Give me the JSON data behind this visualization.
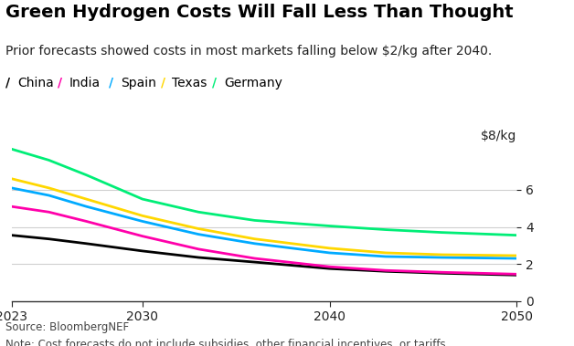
{
  "title": "Green Hydrogen Costs Will Fall Less Than Thought",
  "subtitle": "Prior forecasts showed costs in most markets falling below $2/kg after 2040.",
  "ylabel": "$8/kg",
  "source": "Source: BloombergNEF",
  "note": "Note: Cost forecasts do not include subsidies, other financial incentives, or tariffs.",
  "x": [
    2023,
    2025,
    2027,
    2030,
    2033,
    2036,
    2040,
    2043,
    2046,
    2050
  ],
  "series": {
    "China": {
      "color": "#000000",
      "values": [
        3.55,
        3.35,
        3.1,
        2.7,
        2.35,
        2.1,
        1.75,
        1.6,
        1.5,
        1.4
      ]
    },
    "India": {
      "color": "#FF00AA",
      "values": [
        5.1,
        4.8,
        4.3,
        3.5,
        2.8,
        2.3,
        1.85,
        1.65,
        1.55,
        1.45
      ]
    },
    "Spain": {
      "color": "#00AAFF",
      "values": [
        6.1,
        5.7,
        5.1,
        4.3,
        3.6,
        3.1,
        2.6,
        2.4,
        2.35,
        2.3
      ]
    },
    "Texas": {
      "color": "#FFD700",
      "values": [
        6.6,
        6.1,
        5.5,
        4.6,
        3.9,
        3.35,
        2.85,
        2.6,
        2.5,
        2.45
      ]
    },
    "Germany": {
      "color": "#00EE77",
      "values": [
        8.2,
        7.6,
        6.8,
        5.5,
        4.8,
        4.35,
        4.05,
        3.85,
        3.7,
        3.55
      ]
    }
  },
  "xlim": [
    2023,
    2050
  ],
  "ylim": [
    0,
    8.4
  ],
  "yticks": [
    0,
    2,
    4,
    6
  ],
  "xticks": [
    2023,
    2030,
    2040,
    2050
  ],
  "background_color": "#ffffff",
  "grid_color": "#d0d0d0",
  "legend_order": [
    "China",
    "India",
    "Spain",
    "Texas",
    "Germany"
  ],
  "legend_colors": [
    "#000000",
    "#FF00AA",
    "#00AAFF",
    "#FFD700",
    "#00EE77"
  ],
  "title_fontsize": 14,
  "subtitle_fontsize": 10,
  "legend_fontsize": 10,
  "tick_fontsize": 10,
  "source_fontsize": 8.5
}
